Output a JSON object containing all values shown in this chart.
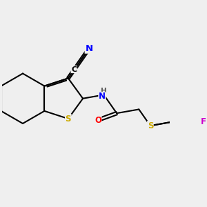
{
  "bg_color": "#efefef",
  "bond_color": "#000000",
  "bond_lw": 1.5,
  "atom_colors": {
    "S": "#ccaa00",
    "N": "#0000ff",
    "O": "#ff0000",
    "F": "#cc00cc",
    "C": "#000000",
    "H": "#555555"
  },
  "font_size": 8.5,
  "fig_size": [
    3.0,
    3.0
  ],
  "dpi": 100
}
